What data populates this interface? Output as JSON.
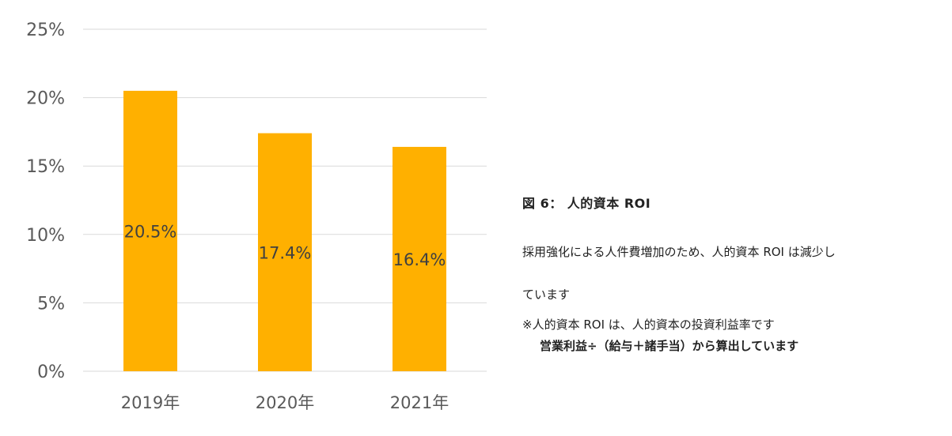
{
  "chart_data": {
    "type": "bar",
    "categories": [
      "2019年",
      "2020年",
      "2021年"
    ],
    "values": [
      20.5,
      17.4,
      16.4
    ],
    "data_labels": [
      "20.5%",
      "17.4%",
      "16.4%"
    ],
    "y_ticks": [
      "0%",
      "5%",
      "10%",
      "15%",
      "20%",
      "25%"
    ],
    "ylim": [
      0,
      25
    ],
    "grid": true,
    "legend": false,
    "bar_color": "#FFB000",
    "grid_color": "#D9D9D9"
  },
  "caption": {
    "title": "図 6： 人的資本 ROI",
    "body": "採用強化による人件費増加のため、人的資本 ROI は減少し\nています",
    "note": "※人的資本 ROI は、人的資本の投資利益率です",
    "note_formula": "営業利益÷（給与＋諸手当）から算出しています"
  }
}
